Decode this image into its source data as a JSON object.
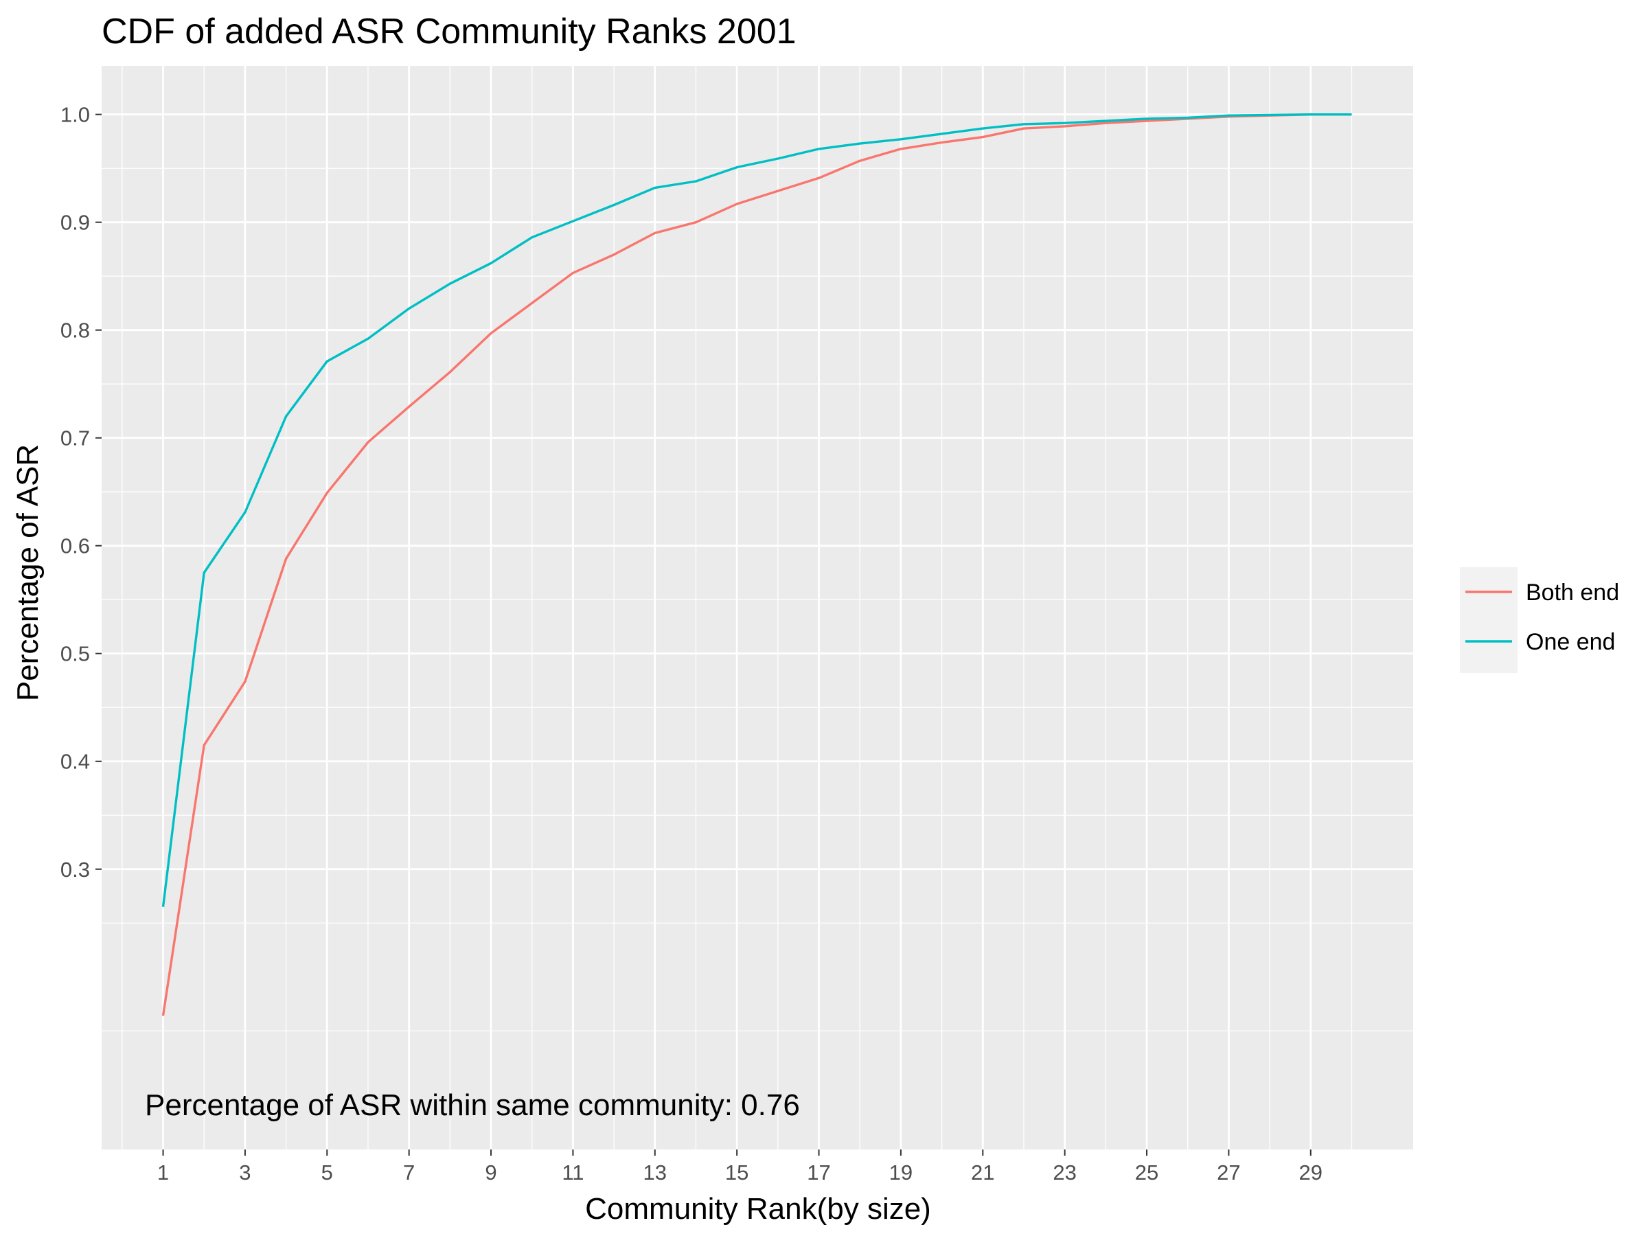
{
  "chart_data": {
    "type": "line",
    "title": "CDF of added ASR Community Ranks 2001",
    "xlabel": "Community Rank(by size)",
    "ylabel": "Percentage of ASR",
    "xlim": [
      -0.5,
      31.5
    ],
    "ylim": [
      0.04,
      1.045
    ],
    "x_ticks": [
      1,
      3,
      5,
      7,
      9,
      11,
      13,
      15,
      17,
      19,
      21,
      23,
      25,
      27,
      29
    ],
    "y_ticks": [
      0.3,
      0.4,
      0.5,
      0.6,
      0.7,
      0.8,
      0.9,
      1.0
    ],
    "y_tick_labels": [
      "0.3",
      "0.4",
      "0.5",
      "0.6",
      "0.7",
      "0.8",
      "0.9",
      "1.0"
    ],
    "grid": true,
    "legend_position": "right",
    "annotation": "Percentage of ASR within same community: 0.76",
    "colors": {
      "panel_background": "#ebebeb",
      "grid": "#ffffff",
      "tick_mark": "#333333"
    },
    "x": [
      1,
      2,
      3,
      4,
      5,
      6,
      7,
      8,
      9,
      10,
      11,
      12,
      13,
      14,
      15,
      16,
      17,
      18,
      19,
      20,
      21,
      22,
      23,
      24,
      25,
      26,
      27,
      28,
      29,
      30
    ],
    "series": [
      {
        "name": "Both end",
        "color": "#f8766d",
        "values": [
          0.164,
          0.415,
          0.474,
          0.588,
          0.649,
          0.696,
          0.729,
          0.761,
          0.797,
          0.825,
          0.853,
          0.87,
          0.89,
          0.9,
          0.917,
          0.929,
          0.941,
          0.957,
          0.968,
          0.974,
          0.979,
          0.987,
          0.989,
          0.992,
          0.994,
          0.996,
          0.998,
          0.999,
          1.0,
          1.0
        ]
      },
      {
        "name": "One end",
        "color": "#00bfc4",
        "values": [
          0.265,
          0.575,
          0.631,
          0.72,
          0.771,
          0.792,
          0.82,
          0.843,
          0.862,
          0.886,
          0.901,
          0.916,
          0.932,
          0.938,
          0.951,
          0.959,
          0.968,
          0.973,
          0.977,
          0.982,
          0.987,
          0.991,
          0.992,
          0.994,
          0.996,
          0.997,
          0.999,
          0.9995,
          1.0,
          1.0
        ]
      }
    ]
  }
}
